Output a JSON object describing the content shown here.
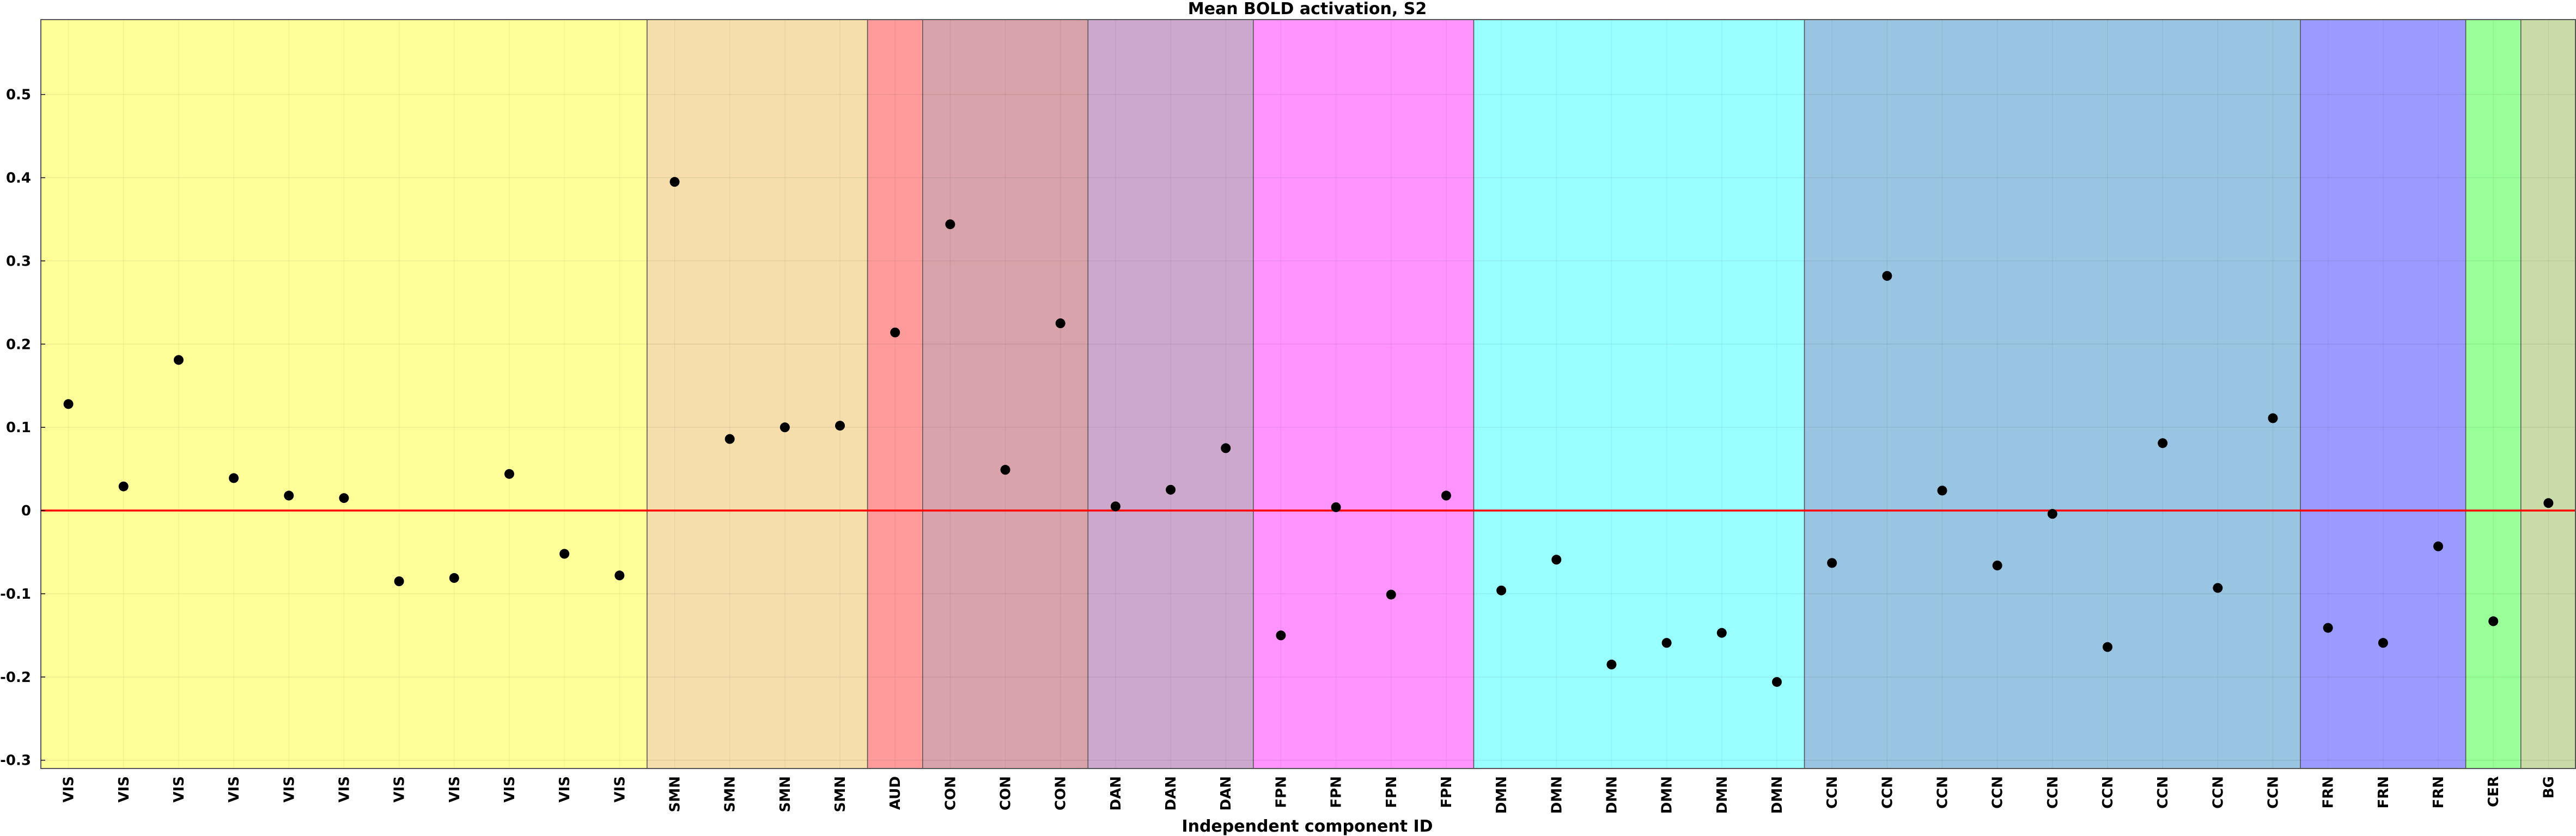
{
  "chart_data": {
    "type": "scatter",
    "title": "Mean BOLD activation, S2",
    "xlabel": "Independent component ID",
    "ylabel": "",
    "ylim": [
      -0.31,
      0.59
    ],
    "yticks": [
      -0.3,
      -0.2,
      -0.1,
      0,
      0.1,
      0.2,
      0.3,
      0.4,
      0.5
    ],
    "ytick_labels": [
      "-0.3",
      "-0.2",
      "-0.1",
      "0",
      "0.1",
      "0.2",
      "0.3",
      "0.4",
      "0.5"
    ],
    "grid": true,
    "reference_line": {
      "y": 0,
      "color": "#ff0000"
    },
    "categories": [
      "VIS",
      "VIS",
      "VIS",
      "VIS",
      "VIS",
      "VIS",
      "VIS",
      "VIS",
      "VIS",
      "VIS",
      "VIS",
      "SMN",
      "SMN",
      "SMN",
      "SMN",
      "AUD",
      "CON",
      "CON",
      "CON",
      "DAN",
      "DAN",
      "DAN",
      "FPN",
      "FPN",
      "FPN",
      "FPN",
      "DMN",
      "DMN",
      "DMN",
      "DMN",
      "DMN",
      "DMN",
      "CCN",
      "CCN",
      "CCN",
      "CCN",
      "CCN",
      "CCN",
      "CCN",
      "CCN",
      "CCN",
      "FRN",
      "FRN",
      "FRN",
      "CER",
      "BG"
    ],
    "values": [
      0.128,
      0.029,
      0.181,
      0.039,
      0.018,
      0.015,
      -0.085,
      -0.081,
      0.044,
      -0.052,
      -0.078,
      0.395,
      0.086,
      0.1,
      0.102,
      0.214,
      0.344,
      0.049,
      0.225,
      0.005,
      0.025,
      0.075,
      -0.15,
      0.004,
      -0.101,
      0.018,
      -0.096,
      -0.059,
      -0.185,
      -0.159,
      -0.147,
      -0.206,
      -0.063,
      0.282,
      0.024,
      -0.066,
      -0.004,
      -0.164,
      0.081,
      -0.093,
      0.111,
      -0.141,
      -0.159,
      -0.043,
      -0.133,
      0.009
    ],
    "networks": [
      {
        "label": "VIS",
        "count": 11,
        "color": "#ffff99"
      },
      {
        "label": "SMN",
        "count": 4,
        "color": "#f5deab"
      },
      {
        "label": "AUD",
        "count": 1,
        "color": "#ff9b9b"
      },
      {
        "label": "CON",
        "count": 3,
        "color": "#d8a3aa"
      },
      {
        "label": "DAN",
        "count": 3,
        "color": "#cda8cd"
      },
      {
        "label": "FPN",
        "count": 4,
        "color": "#ff94ff"
      },
      {
        "label": "DMN",
        "count": 6,
        "color": "#99ffff"
      },
      {
        "label": "CCN",
        "count": 9,
        "color": "#99c4e2"
      },
      {
        "label": "FRN",
        "count": 3,
        "color": "#9b9bff"
      },
      {
        "label": "CER",
        "count": 1,
        "color": "#99ff99"
      },
      {
        "label": "BG",
        "count": 1,
        "color": "#c9dca7"
      }
    ],
    "point_color": "#000000"
  }
}
